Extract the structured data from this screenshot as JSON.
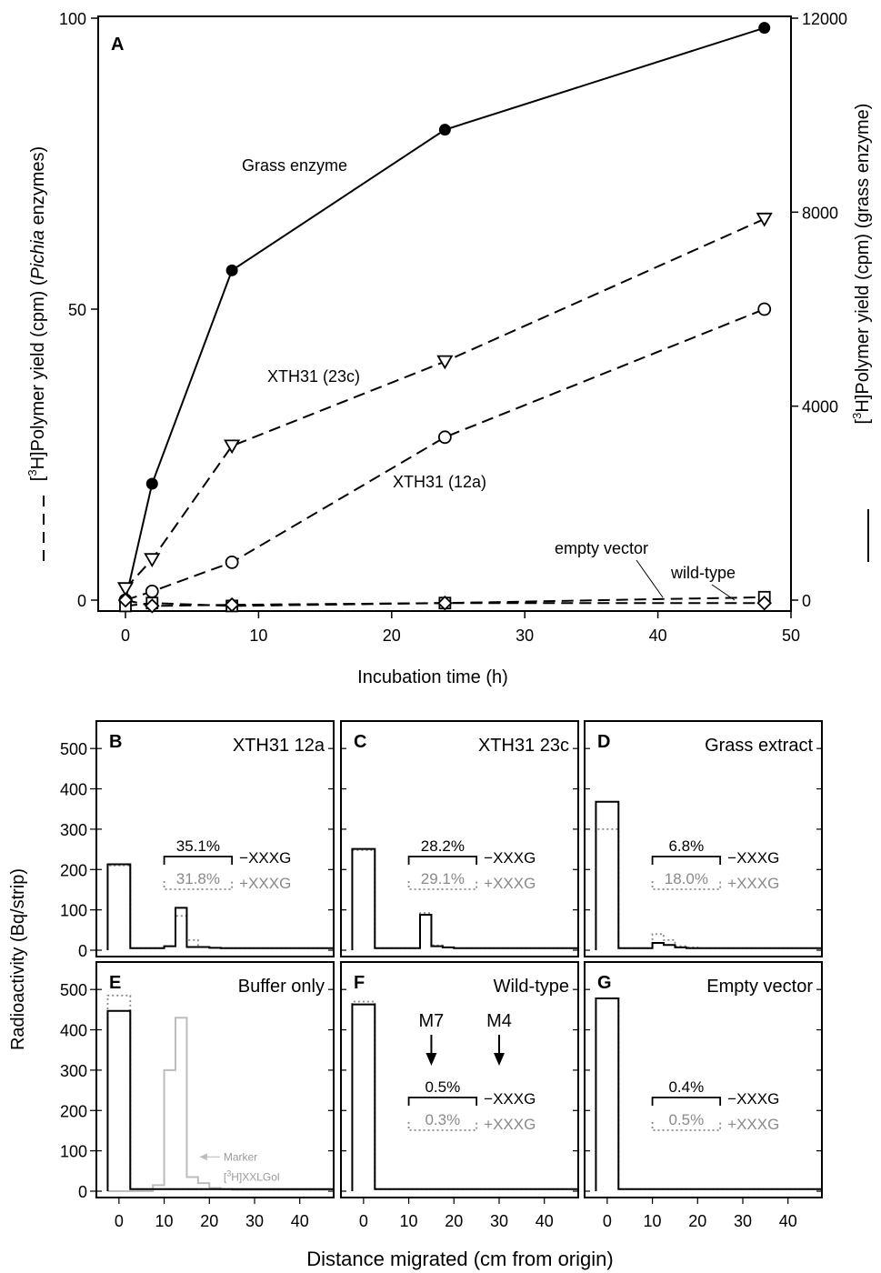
{
  "chart_data": [
    {
      "panel": "A",
      "type": "line",
      "xlabel": "Incubation time (h)",
      "ylabel_left": "[3H]Polymer yield (cpm) (Pichia enzymes)",
      "ylabel_right": "[3H]Polymer yield (cpm) (grass enzyme)",
      "left_axis_marker": "dashed",
      "right_axis_marker": "solid",
      "xlim": [
        0,
        50
      ],
      "ylim_left": [
        0,
        100
      ],
      "ylim_right": [
        0,
        12000
      ],
      "xticks": [
        0,
        10,
        20,
        30,
        40,
        50
      ],
      "yticks_left": [
        0,
        50,
        100
      ],
      "yticks_right": [
        0,
        4000,
        8000,
        12000
      ],
      "grid": false,
      "series": [
        {
          "name": "Grass enzyme",
          "axis": "right",
          "line": "solid",
          "marker": "filled-circle",
          "x": [
            0,
            2,
            8,
            24,
            48
          ],
          "y": [
            0,
            2400,
            6800,
            9700,
            11800
          ]
        },
        {
          "name": "XTH31 (23c)",
          "axis": "left",
          "line": "dashed",
          "marker": "open-triangle-down",
          "x": [
            0,
            2,
            8,
            24,
            48
          ],
          "y": [
            2,
            7,
            26.5,
            41,
            65.5
          ]
        },
        {
          "name": "XTH31 (12a)",
          "axis": "left",
          "line": "dashed",
          "marker": "open-circle",
          "x": [
            0,
            2,
            8,
            24,
            48
          ],
          "y": [
            0,
            1.5,
            6.5,
            28,
            50
          ]
        },
        {
          "name": "empty vector",
          "axis": "left",
          "line": "dashed",
          "marker": "open-square",
          "x": [
            0,
            2,
            8,
            24,
            48
          ],
          "y": [
            -1,
            -0.5,
            -1,
            -0.5,
            0.5
          ]
        },
        {
          "name": "wild-type",
          "axis": "left",
          "line": "dashed",
          "marker": "open-diamond",
          "x": [
            0,
            2,
            8,
            24,
            48
          ],
          "y": [
            0,
            -1,
            -0.8,
            -0.5,
            -0.5
          ]
        }
      ],
      "labels": [
        "Grass enzyme",
        "XTH31 (23c)",
        "XTH31 (12a)",
        "empty vector",
        "wild-type"
      ]
    },
    {
      "type": "bar",
      "style": "step-histogram",
      "xlabel": "Distance migrated (cm from origin)",
      "ylabel": "Radioactivity (Bq/strip)",
      "xlim": [
        -5,
        47.5
      ],
      "ylim": [
        0,
        550
      ],
      "xticks": [
        0,
        10,
        20,
        30,
        40
      ],
      "yticks": [
        0,
        100,
        200,
        300,
        400,
        500
      ],
      "bin_edges": [
        -2.5,
        2.5,
        7.5,
        10,
        12.5,
        15,
        17.5,
        20,
        22.5,
        25,
        27.5,
        30,
        32.5,
        35,
        37.5,
        40,
        42.5,
        45,
        47.5
      ],
      "series_styles": {
        "minus": "solid black (-XXXG)",
        "plus": "dotted grey (+XXXG)"
      },
      "bracket_range_cm": [
        10,
        25
      ],
      "panels": [
        {
          "panel": "B",
          "title": "XTH31 12a",
          "minus": [
            213,
            5,
            5,
            10,
            105,
            8,
            8,
            6,
            5,
            5,
            5,
            5,
            5,
            5,
            5,
            5,
            5,
            5
          ],
          "plus": [
            210,
            5,
            5,
            10,
            85,
            25,
            8,
            6,
            5,
            5,
            5,
            5,
            5,
            5,
            5,
            5,
            5,
            5
          ],
          "annotations": {
            "minus_pct": "35.1%",
            "plus_pct": "31.8%",
            "minus_label": "−XXXG",
            "plus_label": "+XXXG"
          }
        },
        {
          "panel": "C",
          "title": "XTH31 23c",
          "minus": [
            251,
            5,
            5,
            5,
            88,
            10,
            7,
            5,
            5,
            5,
            5,
            5,
            5,
            5,
            5,
            5,
            5,
            5
          ],
          "plus": [
            248,
            5,
            5,
            5,
            92,
            12,
            7,
            5,
            5,
            5,
            5,
            5,
            5,
            5,
            5,
            5,
            5,
            5
          ],
          "annotations": {
            "minus_pct": "28.2%",
            "plus_pct": "29.1%",
            "minus_label": "−XXXG",
            "plus_label": "+XXXG"
          }
        },
        {
          "panel": "D",
          "title": "Grass extract",
          "minus": [
            368,
            5,
            5,
            18,
            13,
            7,
            5,
            5,
            5,
            5,
            5,
            5,
            5,
            5,
            5,
            5,
            5,
            5
          ],
          "plus": [
            300,
            5,
            5,
            40,
            25,
            10,
            7,
            5,
            5,
            5,
            5,
            5,
            5,
            5,
            5,
            5,
            5,
            5
          ],
          "annotations": {
            "minus_pct": "6.8%",
            "plus_pct": "18.0%",
            "minus_label": "−XXXG",
            "plus_label": "+XXXG"
          }
        },
        {
          "panel": "E",
          "title": "Buffer only",
          "minus": [
            447,
            5,
            5,
            5,
            5,
            5,
            5,
            5,
            5,
            5,
            5,
            5,
            5,
            5,
            5,
            5,
            5,
            5
          ],
          "plus": [
            485,
            5,
            5,
            5,
            5,
            5,
            5,
            5,
            5,
            5,
            5,
            5,
            5,
            5,
            5,
            5,
            5,
            5
          ],
          "marker_series": {
            "label_line1": "Marker",
            "label_line2": "[3H]XXLGol",
            "values": [
              0,
              0,
              15,
              300,
              430,
              35,
              20,
              8,
              5,
              3,
              3,
              3,
              3,
              3,
              3,
              3,
              3,
              3
            ]
          }
        },
        {
          "panel": "F",
          "title": "Wild-type",
          "minus": [
            463,
            5,
            5,
            5,
            5,
            5,
            5,
            5,
            5,
            5,
            5,
            5,
            5,
            5,
            5,
            5,
            5,
            5
          ],
          "plus": [
            470,
            5,
            5,
            5,
            5,
            5,
            5,
            5,
            5,
            5,
            5,
            5,
            5,
            5,
            5,
            5,
            5,
            5
          ],
          "annotations": {
            "minus_pct": "0.5%",
            "plus_pct": "0.3%",
            "minus_label": "−XXXG",
            "plus_label": "+XXXG"
          },
          "arrows": [
            {
              "label": "M7",
              "x": 15
            },
            {
              "label": "M4",
              "x": 30
            }
          ]
        },
        {
          "panel": "G",
          "title": "Empty vector",
          "minus": [
            478,
            5,
            5,
            5,
            5,
            5,
            5,
            5,
            5,
            5,
            5,
            5,
            5,
            5,
            5,
            5,
            5,
            5
          ],
          "plus": [
            478,
            5,
            5,
            5,
            5,
            5,
            5,
            5,
            5,
            5,
            5,
            5,
            5,
            5,
            5,
            5,
            5,
            5
          ],
          "annotations": {
            "minus_pct": "0.4%",
            "plus_pct": "0.5%",
            "minus_label": "−XXXG",
            "plus_label": "+XXXG"
          }
        }
      ]
    }
  ]
}
